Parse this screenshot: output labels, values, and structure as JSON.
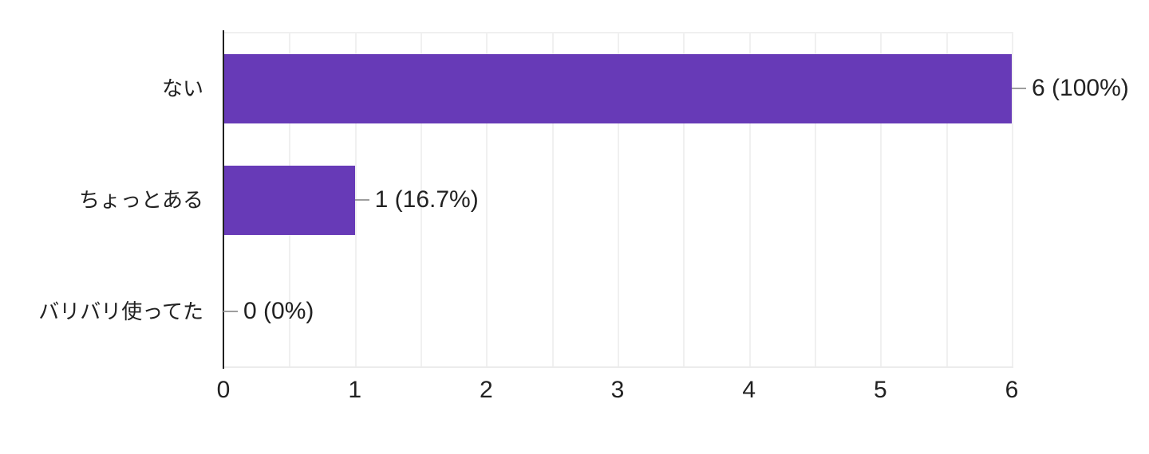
{
  "chart_data": {
    "type": "bar",
    "orientation": "horizontal",
    "title": "",
    "categories": [
      "ない",
      "ちょっとある",
      "バリバリ使ってた"
    ],
    "values": [
      6,
      1,
      0
    ],
    "value_labels": [
      "6 (100%)",
      "1 (16.7%)",
      "0 (0%)"
    ],
    "series": [
      {
        "name": "responses",
        "values": [
          6,
          1,
          0
        ]
      }
    ],
    "xlim": [
      0,
      6
    ],
    "xticks": [
      0,
      1,
      2,
      3,
      4,
      5,
      6
    ],
    "grid": true,
    "grid_step": 0.5,
    "legend_position": "none",
    "xlabel": "",
    "ylabel": "",
    "colors": {
      "bar": "#673ab7",
      "axis": "#212121",
      "gridline": "#f0f0f0",
      "baseline": "#ececec",
      "connector": "#9e9e9e",
      "text": "#212121"
    }
  }
}
